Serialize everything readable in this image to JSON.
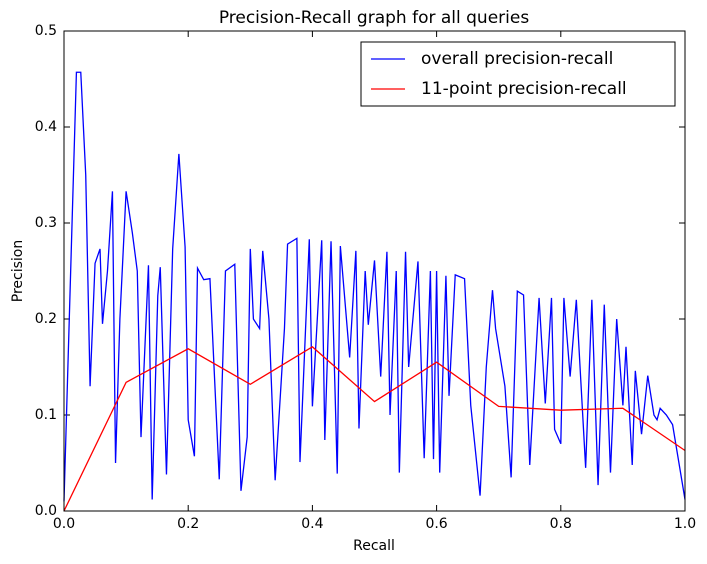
{
  "chart_data": {
    "type": "line",
    "title": "Precision-Recall graph for all queries",
    "x_label": "Recall",
    "y_label": "Precision",
    "xlim": [
      0,
      1
    ],
    "ylim": [
      0,
      0.5
    ],
    "xticks": [
      {
        "value": 0,
        "label": "0.0"
      },
      {
        "value": 0.2,
        "label": "0.2"
      },
      {
        "value": 0.4,
        "label": "0.4"
      },
      {
        "value": 0.6,
        "label": "0.6"
      },
      {
        "value": 0.8,
        "label": "0.8"
      },
      {
        "value": 1,
        "label": "1.0"
      }
    ],
    "yticks": [
      {
        "value": 0,
        "label": "0.0"
      },
      {
        "value": 0.1,
        "label": "0.1"
      },
      {
        "value": 0.2,
        "label": "0.2"
      },
      {
        "value": 0.3,
        "label": "0.3"
      },
      {
        "value": 0.4,
        "label": "0.4"
      },
      {
        "value": 0.5,
        "label": "0.5"
      }
    ],
    "grid": false,
    "legend_position": "upper-right",
    "series": [
      {
        "name": "overall precision-recall",
        "color": "#0000ff",
        "x": [
          0,
          0.02,
          0.027,
          0.035,
          0.042,
          0.05,
          0.058,
          0.062,
          0.07,
          0.078,
          0.083,
          0.09,
          0.1,
          0.11,
          0.118,
          0.124,
          0.136,
          0.142,
          0.151,
          0.155,
          0.165,
          0.175,
          0.185,
          0.195,
          0.2,
          0.21,
          0.215,
          0.225,
          0.235,
          0.25,
          0.26,
          0.275,
          0.285,
          0.295,
          0.3,
          0.305,
          0.315,
          0.32,
          0.33,
          0.34,
          0.355,
          0.36,
          0.375,
          0.38,
          0.395,
          0.4,
          0.415,
          0.42,
          0.43,
          0.44,
          0.445,
          0.46,
          0.47,
          0.475,
          0.485,
          0.49,
          0.5,
          0.51,
          0.52,
          0.525,
          0.535,
          0.54,
          0.55,
          0.555,
          0.57,
          0.58,
          0.59,
          0.595,
          0.6,
          0.605,
          0.615,
          0.62,
          0.63,
          0.645,
          0.655,
          0.67,
          0.68,
          0.69,
          0.695,
          0.71,
          0.72,
          0.73,
          0.74,
          0.75,
          0.765,
          0.775,
          0.785,
          0.79,
          0.8,
          0.805,
          0.815,
          0.825,
          0.84,
          0.85,
          0.86,
          0.87,
          0.88,
          0.89,
          0.9,
          0.905,
          0.915,
          0.92,
          0.93,
          0.94,
          0.95,
          0.955,
          0.96,
          0.97,
          0.98,
          1.0
        ],
        "values": [
          0.01,
          0.457,
          0.457,
          0.35,
          0.13,
          0.258,
          0.273,
          0.195,
          0.25,
          0.333,
          0.05,
          0.2,
          0.333,
          0.29,
          0.25,
          0.077,
          0.256,
          0.012,
          0.224,
          0.254,
          0.038,
          0.273,
          0.372,
          0.275,
          0.095,
          0.057,
          0.253,
          0.241,
          0.242,
          0.033,
          0.25,
          0.257,
          0.021,
          0.077,
          0.273,
          0.2,
          0.19,
          0.271,
          0.2,
          0.032,
          0.19,
          0.278,
          0.284,
          0.051,
          0.283,
          0.109,
          0.282,
          0.074,
          0.281,
          0.039,
          0.276,
          0.16,
          0.271,
          0.086,
          0.25,
          0.194,
          0.261,
          0.14,
          0.27,
          0.1,
          0.25,
          0.04,
          0.27,
          0.15,
          0.26,
          0.055,
          0.25,
          0.054,
          0.25,
          0.04,
          0.245,
          0.12,
          0.246,
          0.242,
          0.11,
          0.016,
          0.15,
          0.23,
          0.19,
          0.13,
          0.035,
          0.229,
          0.225,
          0.048,
          0.222,
          0.112,
          0.222,
          0.085,
          0.07,
          0.222,
          0.14,
          0.22,
          0.045,
          0.22,
          0.027,
          0.215,
          0.04,
          0.2,
          0.11,
          0.171,
          0.048,
          0.146,
          0.08,
          0.141,
          0.1,
          0.095,
          0.107,
          0.1,
          0.09,
          0.012
        ]
      },
      {
        "name": "11-point precision-recall",
        "color": "#ff0000",
        "x": [
          0,
          0.1,
          0.2,
          0.3,
          0.4,
          0.5,
          0.6,
          0.7,
          0.8,
          0.9,
          1.0
        ],
        "values": [
          0,
          0.134,
          0.169,
          0.132,
          0.171,
          0.114,
          0.155,
          0.109,
          0.105,
          0.107,
          0.063
        ]
      }
    ]
  }
}
